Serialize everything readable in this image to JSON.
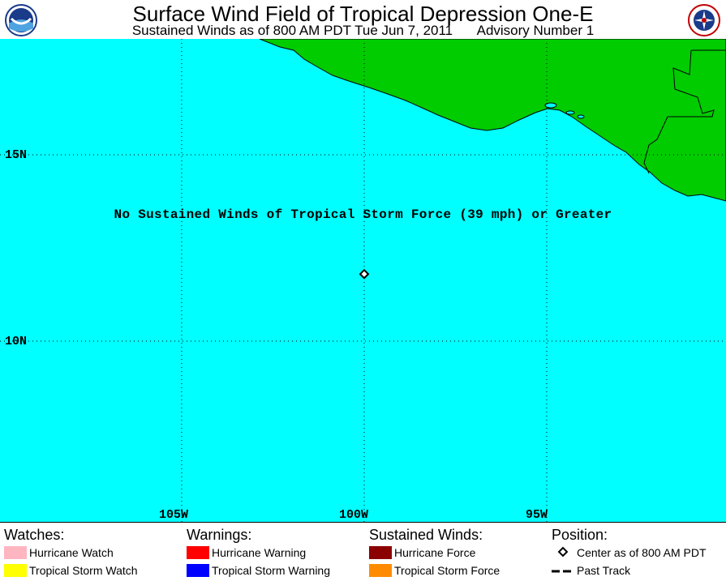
{
  "header": {
    "title": "Surface Wind Field of Tropical Depression One-E",
    "subtitle_time": "Sustained Winds as of 800 AM PDT Tue Jun 7, 2011",
    "subtitle_advisory": "Advisory Number 1",
    "logo_left_text": "NOAA",
    "logo_right_text": "NATIONAL WEATHER SERVICE"
  },
  "map": {
    "ocean_color": "#00ffff",
    "land_color": "#00cc00",
    "lat_labels": [
      "15N",
      "10N"
    ],
    "lon_labels": [
      "105W",
      "100W",
      "95W"
    ],
    "notice": "No Sustained Winds of Tropical Storm Force (39 mph) or Greater",
    "storm_center": {
      "lat": 11.8,
      "lon": -100.0
    }
  },
  "legend": {
    "watches": {
      "heading": "Watches:",
      "items": [
        {
          "label": "Hurricane Watch",
          "color": "#ffb6c1"
        },
        {
          "label": "Tropical Storm Watch",
          "color": "#ffff00"
        }
      ]
    },
    "warnings": {
      "heading": "Warnings:",
      "items": [
        {
          "label": "Hurricane Warning",
          "color": "#ff0000"
        },
        {
          "label": "Tropical Storm Warning",
          "color": "#0000ff"
        }
      ]
    },
    "winds": {
      "heading": "Sustained Winds:",
      "items": [
        {
          "label": "Hurricane Force",
          "color": "#8b0000"
        },
        {
          "label": "Tropical Storm Force",
          "color": "#ff8c00"
        }
      ]
    },
    "position": {
      "heading": "Position:",
      "items": [
        {
          "label": "Center as of 800 AM PDT",
          "icon": "diamond-icon"
        },
        {
          "label": "Past Track",
          "icon": "dashed-line-icon"
        }
      ]
    }
  }
}
